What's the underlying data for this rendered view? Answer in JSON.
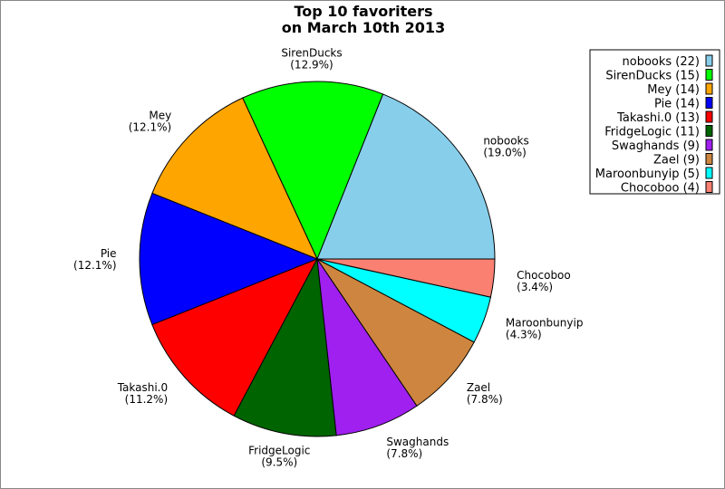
{
  "chart_data": {
    "type": "pie",
    "title": [
      "Top 10 favoriters",
      "on March 10th 2013"
    ],
    "categories": [
      "nobooks",
      "SirenDucks",
      "Mey",
      "Pie",
      "Takashi.0",
      "FridgeLogic",
      "Swaghands",
      "Zael",
      "Maroonbunyip",
      "Chocoboo"
    ],
    "values": [
      22,
      15,
      14,
      14,
      13,
      11,
      9,
      9,
      5,
      4
    ],
    "percent_labels": [
      "19.0%",
      "12.9%",
      "12.1%",
      "12.1%",
      "11.2%",
      "9.5%",
      "7.8%",
      "7.8%",
      "4.3%",
      "3.4%"
    ],
    "legend_labels": [
      "nobooks (22)",
      "SirenDucks (15)",
      "Mey (14)",
      "Pie (14)",
      "Takashi.0 (13)",
      "FridgeLogic (11)",
      "Swaghands (9)",
      "Zael (9)",
      "Maroonbunyip (5)",
      "Chocoboo (4)"
    ],
    "colors": [
      "#87ceeb",
      "#00ff00",
      "#ffa500",
      "#0000ff",
      "#ff0000",
      "#006400",
      "#a020f0",
      "#cd853f",
      "#00ffff",
      "#fa8072"
    ],
    "start_angle_deg": 0,
    "direction": "counterclockwise",
    "legend_position": "top-right"
  }
}
